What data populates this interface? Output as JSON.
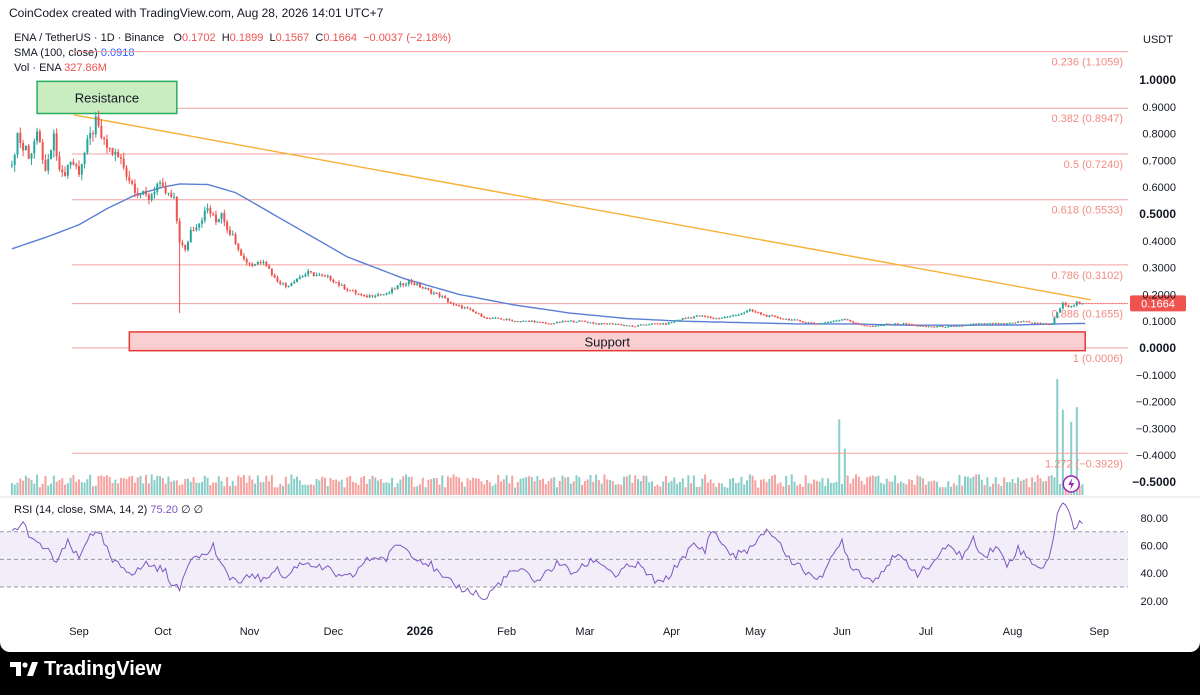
{
  "header": {
    "creator": "CoinCodex created with TradingView.com, Aug 28, 2026 14:01 UTC+7",
    "symbol": "ENA / TetherUS · 1D · Binance",
    "ohlc": {
      "o_label": "O",
      "o": "0.1702",
      "h_label": "H",
      "h": "0.1899",
      "l_label": "L",
      "l": "0.1567",
      "c_label": "C",
      "c": "0.1664",
      "change": "−0.0037 (−2.18%)"
    },
    "sma_label": "SMA (100, close)",
    "sma_value": "0.0918",
    "vol_label": "Vol · ENA",
    "vol_value": "327.86M",
    "rsi_label": "RSI (14, close, SMA, 14, 2)",
    "rsi_value": "75.20",
    "rsi_na1": "∅",
    "rsi_na2": "∅"
  },
  "footer": {
    "brand": "TradingView",
    "logo_icon": "tradingview-logo-icon"
  },
  "colors": {
    "up": "#26a69a",
    "down": "#ef5350",
    "sma": "#5b7fd6",
    "trend": "#f7b032",
    "fib": "#f4a0a0",
    "fib_text": "#f28b82",
    "support_fill": "#f8c7c9",
    "support_stroke": "#e53935",
    "resistance_fill": "#c9ecc0",
    "resistance_stroke": "#27ae60",
    "rsi": "#7e57c2",
    "rsi_band": "#ede7f6"
  },
  "chart_data": {
    "type": "candlestick",
    "currency": "USDT",
    "price_axis": {
      "ticks": [
        1.0,
        0.9,
        0.8,
        0.7,
        0.6,
        0.5,
        0.4,
        0.3,
        0.2,
        0.1,
        0.0,
        -0.1,
        -0.2,
        -0.3,
        -0.4,
        -0.5
      ],
      "tick_labels": [
        "1.0000",
        "0.9000",
        "0.8000",
        "0.7000",
        "0.6000",
        "0.5000",
        "0.4000",
        "0.3000",
        "0.2000",
        "0.1000",
        "0.0000",
        "−0.1000",
        "−0.2000",
        "−0.3000",
        "−0.4000",
        "−0.5000"
      ],
      "bold_ticks": [
        1.0,
        0.5,
        0.0,
        -0.5
      ],
      "range": [
        -0.53,
        1.1
      ]
    },
    "time_axis": {
      "labels": [
        "Sep",
        "Oct",
        "Nov",
        "Dec",
        "2026",
        "Feb",
        "Mar",
        "Apr",
        "May",
        "Jun",
        "Jul",
        "Aug",
        "Sep"
      ],
      "bold_labels": [
        "2026"
      ],
      "positions_days": [
        0,
        30,
        61,
        91,
        122,
        153,
        181,
        212,
        242,
        273,
        303,
        334,
        365
      ]
    },
    "last_price": 0.1664,
    "last_price_label": "0.1664",
    "fibonacci": [
      {
        "level": 0.236,
        "price": 1.1059,
        "label": "0.236 (1.1059)"
      },
      {
        "level": 0.382,
        "price": 0.8947,
        "label": "0.382 (0.8947)"
      },
      {
        "level": 0.5,
        "price": 0.724,
        "label": "0.5 (0.7240)"
      },
      {
        "level": 0.618,
        "price": 0.5533,
        "label": "0.618 (0.5533)"
      },
      {
        "level": 0.786,
        "price": 0.3102,
        "label": "0.786 (0.3102)"
      },
      {
        "level": 0.886,
        "price": 0.1655,
        "label": "0.886 (0.1655)"
      },
      {
        "level": 1,
        "price": 0.0006,
        "label": "1 (0.0006)"
      },
      {
        "level": 1.272,
        "price": -0.3929,
        "label": "1.272 (−0.3929)"
      }
    ],
    "zones": {
      "resistance": {
        "label": "Resistance",
        "day_start": -15,
        "day_end": 35,
        "price_top": 0.995,
        "price_bottom": 0.875
      },
      "support": {
        "label": "Support",
        "day_start": 18,
        "day_end": 360,
        "price_top": 0.06,
        "price_bottom": -0.01
      }
    },
    "trendline": {
      "from": {
        "day": -2,
        "price": 0.87
      },
      "to": {
        "day": 362,
        "price": 0.18
      }
    },
    "price_anchors": [
      [
        -24,
        0.68
      ],
      [
        -22,
        0.8
      ],
      [
        -20,
        0.76
      ],
      [
        -18,
        0.72
      ],
      [
        -15,
        0.8
      ],
      [
        -12,
        0.66
      ],
      [
        -9,
        0.78
      ],
      [
        -6,
        0.64
      ],
      [
        -3,
        0.7
      ],
      [
        0,
        0.66
      ],
      [
        3,
        0.76
      ],
      [
        6,
        0.84
      ],
      [
        9,
        0.76
      ],
      [
        12,
        0.73
      ],
      [
        15,
        0.7
      ],
      [
        18,
        0.63
      ],
      [
        21,
        0.58
      ],
      [
        25,
        0.56
      ],
      [
        28,
        0.61
      ],
      [
        31,
        0.58
      ],
      [
        34,
        0.55
      ],
      [
        36,
        0.4
      ],
      [
        38,
        0.36
      ],
      [
        40,
        0.44
      ],
      [
        43,
        0.47
      ],
      [
        46,
        0.52
      ],
      [
        49,
        0.47
      ],
      [
        51,
        0.51
      ],
      [
        53,
        0.45
      ],
      [
        56,
        0.4
      ],
      [
        59,
        0.33
      ],
      [
        62,
        0.31
      ],
      [
        66,
        0.33
      ],
      [
        70,
        0.26
      ],
      [
        74,
        0.23
      ],
      [
        78,
        0.26
      ],
      [
        82,
        0.28
      ],
      [
        86,
        0.27
      ],
      [
        90,
        0.26
      ],
      [
        94,
        0.23
      ],
      [
        98,
        0.21
      ],
      [
        102,
        0.19
      ],
      [
        106,
        0.2
      ],
      [
        110,
        0.2
      ],
      [
        114,
        0.23
      ],
      [
        118,
        0.25
      ],
      [
        122,
        0.23
      ],
      [
        126,
        0.21
      ],
      [
        130,
        0.19
      ],
      [
        134,
        0.16
      ],
      [
        138,
        0.15
      ],
      [
        142,
        0.13
      ],
      [
        146,
        0.11
      ],
      [
        150,
        0.11
      ],
      [
        156,
        0.1
      ],
      [
        162,
        0.1
      ],
      [
        168,
        0.09
      ],
      [
        174,
        0.1
      ],
      [
        180,
        0.1
      ],
      [
        186,
        0.09
      ],
      [
        192,
        0.09
      ],
      [
        198,
        0.08
      ],
      [
        204,
        0.09
      ],
      [
        210,
        0.09
      ],
      [
        216,
        0.11
      ],
      [
        222,
        0.12
      ],
      [
        228,
        0.11
      ],
      [
        234,
        0.12
      ],
      [
        240,
        0.14
      ],
      [
        246,
        0.12
      ],
      [
        252,
        0.11
      ],
      [
        258,
        0.1
      ],
      [
        264,
        0.09
      ],
      [
        270,
        0.1
      ],
      [
        274,
        0.11
      ],
      [
        278,
        0.09
      ],
      [
        284,
        0.08
      ],
      [
        290,
        0.09
      ],
      [
        296,
        0.09
      ],
      [
        302,
        0.08
      ],
      [
        308,
        0.08
      ],
      [
        314,
        0.08
      ],
      [
        320,
        0.09
      ],
      [
        326,
        0.09
      ],
      [
        332,
        0.09
      ],
      [
        338,
        0.1
      ],
      [
        344,
        0.09
      ],
      [
        348,
        0.09
      ],
      [
        350,
        0.13
      ],
      [
        352,
        0.17
      ],
      [
        354,
        0.15
      ],
      [
        357,
        0.17
      ],
      [
        359,
        0.1664
      ]
    ],
    "spike_low": {
      "day": 36,
      "price": 0.13
    },
    "sma_anchors": [
      [
        -24,
        0.37
      ],
      [
        -10,
        0.42
      ],
      [
        0,
        0.46
      ],
      [
        10,
        0.52
      ],
      [
        20,
        0.57
      ],
      [
        30,
        0.6
      ],
      [
        36,
        0.612
      ],
      [
        46,
        0.61
      ],
      [
        56,
        0.58
      ],
      [
        66,
        0.52
      ],
      [
        76,
        0.46
      ],
      [
        86,
        0.4
      ],
      [
        96,
        0.34
      ],
      [
        106,
        0.3
      ],
      [
        116,
        0.26
      ],
      [
        126,
        0.23
      ],
      [
        136,
        0.2
      ],
      [
        146,
        0.18
      ],
      [
        156,
        0.16
      ],
      [
        166,
        0.145
      ],
      [
        176,
        0.13
      ],
      [
        186,
        0.12
      ],
      [
        196,
        0.11
      ],
      [
        206,
        0.105
      ],
      [
        216,
        0.1
      ],
      [
        236,
        0.095
      ],
      [
        256,
        0.09
      ],
      [
        276,
        0.09
      ],
      [
        296,
        0.085
      ],
      [
        316,
        0.085
      ],
      [
        336,
        0.086
      ],
      [
        350,
        0.09
      ],
      [
        360,
        0.0918
      ]
    ],
    "volume_spikes": [
      {
        "day": 272,
        "height": 0.62
      },
      {
        "day": 274,
        "height": 0.38
      },
      {
        "day": 350,
        "height": 0.95
      },
      {
        "day": 352,
        "height": 0.7
      },
      {
        "day": 355,
        "height": 0.6
      },
      {
        "day": 357,
        "height": 0.72
      }
    ],
    "rsi": {
      "axis_ticks": [
        80,
        60,
        40,
        20
      ],
      "axis_labels": [
        "80.00",
        "60.00",
        "40.00",
        "20.00"
      ],
      "upper_band": 70,
      "lower_band": 30,
      "mid": 50,
      "range": [
        14,
        92
      ],
      "last": 75.2,
      "anchors": [
        [
          -24,
          70
        ],
        [
          -20,
          76
        ],
        [
          -16,
          62
        ],
        [
          -12,
          58
        ],
        [
          -8,
          48
        ],
        [
          -4,
          62
        ],
        [
          0,
          50
        ],
        [
          4,
          70
        ],
        [
          8,
          66
        ],
        [
          12,
          48
        ],
        [
          16,
          44
        ],
        [
          20,
          40
        ],
        [
          24,
          47
        ],
        [
          28,
          44
        ],
        [
          31,
          41
        ],
        [
          34,
          30
        ],
        [
          36,
          28
        ],
        [
          39,
          48
        ],
        [
          42,
          55
        ],
        [
          45,
          52
        ],
        [
          48,
          60
        ],
        [
          51,
          44
        ],
        [
          54,
          38
        ],
        [
          58,
          32
        ],
        [
          62,
          40
        ],
        [
          66,
          34
        ],
        [
          70,
          44
        ],
        [
          74,
          36
        ],
        [
          78,
          46
        ],
        [
          82,
          48
        ],
        [
          86,
          44
        ],
        [
          90,
          42
        ],
        [
          94,
          36
        ],
        [
          98,
          38
        ],
        [
          102,
          48
        ],
        [
          106,
          52
        ],
        [
          110,
          50
        ],
        [
          114,
          62
        ],
        [
          118,
          56
        ],
        [
          122,
          50
        ],
        [
          126,
          46
        ],
        [
          130,
          36
        ],
        [
          134,
          32
        ],
        [
          138,
          28
        ],
        [
          142,
          26
        ],
        [
          145,
          20
        ],
        [
          148,
          28
        ],
        [
          152,
          36
        ],
        [
          156,
          42
        ],
        [
          160,
          40
        ],
        [
          164,
          34
        ],
        [
          168,
          42
        ],
        [
          172,
          48
        ],
        [
          176,
          40
        ],
        [
          180,
          44
        ],
        [
          184,
          50
        ],
        [
          188,
          46
        ],
        [
          192,
          38
        ],
        [
          196,
          44
        ],
        [
          200,
          46
        ],
        [
          204,
          38
        ],
        [
          208,
          32
        ],
        [
          212,
          40
        ],
        [
          216,
          52
        ],
        [
          220,
          60
        ],
        [
          224,
          56
        ],
        [
          226,
          72
        ],
        [
          230,
          62
        ],
        [
          234,
          52
        ],
        [
          238,
          56
        ],
        [
          242,
          60
        ],
        [
          246,
          72
        ],
        [
          250,
          64
        ],
        [
          254,
          50
        ],
        [
          258,
          46
        ],
        [
          262,
          36
        ],
        [
          266,
          40
        ],
        [
          270,
          52
        ],
        [
          273,
          64
        ],
        [
          276,
          46
        ],
        [
          280,
          40
        ],
        [
          284,
          34
        ],
        [
          288,
          44
        ],
        [
          292,
          52
        ],
        [
          296,
          48
        ],
        [
          300,
          40
        ],
        [
          304,
          44
        ],
        [
          308,
          54
        ],
        [
          312,
          60
        ],
        [
          316,
          52
        ],
        [
          320,
          64
        ],
        [
          324,
          52
        ],
        [
          328,
          60
        ],
        [
          332,
          46
        ],
        [
          336,
          58
        ],
        [
          340,
          50
        ],
        [
          344,
          44
        ],
        [
          347,
          48
        ],
        [
          350,
          84
        ],
        [
          352,
          89
        ],
        [
          354,
          88
        ],
        [
          356,
          72
        ],
        [
          358,
          78
        ],
        [
          359,
          75.2
        ]
      ]
    }
  }
}
